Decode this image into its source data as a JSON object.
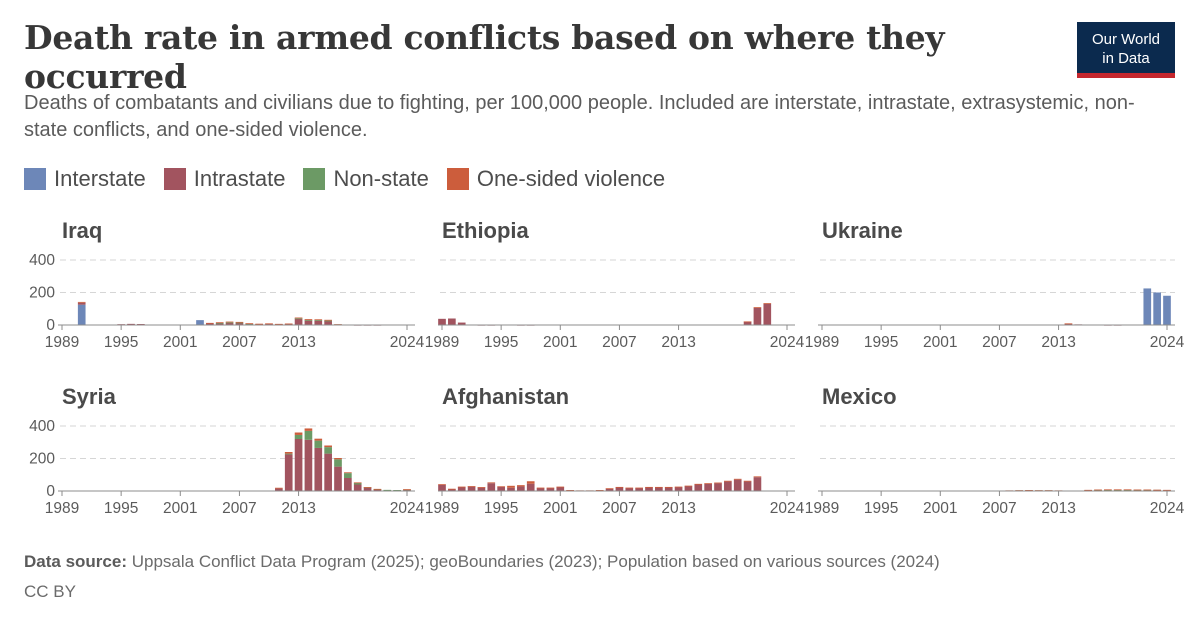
{
  "title": "Death rate in armed conflicts based on where they occurred",
  "subtitle": "Deaths of combatants and civilians due to fighting, per 100,000 people. Included are interstate, intrastate, extrasystemic, non-state conflicts, and one-sided violence.",
  "logo": {
    "line1": "Our World",
    "line2": "in Data",
    "bg": "#0b2a4e",
    "accent": "#c5262d"
  },
  "footer": {
    "source_label": "Data source:",
    "source_text": "Uppsala Conflict Data Program (2025); geoBoundaries (2023); Population based on various sources (2024)",
    "license": "CC BY"
  },
  "chart_data": {
    "type": "bar",
    "stacked": true,
    "layout": "small-multiples",
    "grid": true,
    "legend_position": "top-left",
    "years": [
      1989,
      1990,
      1991,
      1992,
      1993,
      1994,
      1995,
      1996,
      1997,
      1998,
      1999,
      2000,
      2001,
      2002,
      2003,
      2004,
      2005,
      2006,
      2007,
      2008,
      2009,
      2010,
      2011,
      2012,
      2013,
      2014,
      2015,
      2016,
      2017,
      2018,
      2019,
      2020,
      2021,
      2022,
      2023,
      2024
    ],
    "x_ticks": [
      "1989",
      "1995",
      "2001",
      "2007",
      "2013",
      "2024"
    ],
    "x_tick_years": [
      1989,
      1995,
      2001,
      2007,
      2013,
      2024
    ],
    "y_ticks": [
      "0",
      "200",
      "400"
    ],
    "y_tick_values": [
      0,
      200,
      400
    ],
    "ylim": [
      0,
      400
    ],
    "series": [
      {
        "name": "Interstate",
        "color": "#6d87b8"
      },
      {
        "name": "Intrastate",
        "color": "#a2545f"
      },
      {
        "name": "Non-state",
        "color": "#6c9a65"
      },
      {
        "name": "One-sided violence",
        "color": "#cc5d3c"
      }
    ],
    "panels": [
      {
        "name": "Iraq",
        "values": {
          "Interstate": [
            0,
            0,
            125,
            0,
            0,
            0,
            0,
            0,
            0,
            0,
            0,
            0,
            0,
            0,
            30,
            0,
            0,
            0,
            0,
            0,
            0,
            0,
            0,
            0,
            0,
            0,
            0,
            0,
            0,
            0,
            0,
            0,
            0,
            0,
            0,
            0
          ],
          "Intrastate": [
            0,
            0,
            12,
            3,
            2,
            3,
            5,
            7,
            6,
            2,
            2,
            2,
            2,
            2,
            0,
            10,
            12,
            14,
            13,
            8,
            6,
            8,
            6,
            8,
            40,
            28,
            28,
            25,
            3,
            2,
            1,
            1,
            1,
            0,
            0,
            0
          ],
          "Non-state": [
            0,
            0,
            0,
            0,
            0,
            0,
            0,
            0,
            0,
            0,
            0,
            0,
            0,
            0,
            0,
            0,
            1,
            2,
            2,
            1,
            0,
            0,
            0,
            0,
            1,
            2,
            2,
            2,
            1,
            0,
            0,
            0,
            0,
            0,
            0,
            0
          ],
          "One-sided violence": [
            0,
            0,
            5,
            0,
            0,
            0,
            0,
            0,
            0,
            0,
            0,
            0,
            0,
            0,
            0,
            3,
            4,
            5,
            4,
            2,
            2,
            2,
            1,
            1,
            5,
            6,
            5,
            5,
            1,
            0,
            0,
            0,
            0,
            0,
            0,
            0
          ]
        }
      },
      {
        "name": "Ethiopia",
        "values": {
          "Interstate": [
            0,
            0,
            0,
            0,
            0,
            0,
            0,
            0,
            0,
            0,
            3,
            3,
            0,
            0,
            0,
            0,
            0,
            0,
            0,
            0,
            0,
            0,
            0,
            0,
            0,
            0,
            0,
            0,
            0,
            0,
            0,
            0,
            0,
            0,
            0,
            0
          ],
          "Intrastate": [
            38,
            40,
            15,
            2,
            1,
            1,
            0,
            0,
            1,
            1,
            0,
            0,
            0,
            0,
            0,
            0,
            0,
            0,
            0,
            0,
            0,
            0,
            0,
            0,
            0,
            0,
            0,
            0,
            0,
            0,
            0,
            20,
            105,
            130,
            0,
            0
          ],
          "Non-state": [
            0,
            0,
            0,
            0,
            0,
            0,
            0,
            0,
            0,
            0,
            0,
            0,
            0,
            0,
            0,
            0,
            0,
            0,
            0,
            0,
            0,
            0,
            0,
            0,
            0,
            0,
            0,
            0,
            0,
            0,
            0,
            0,
            0,
            0,
            0,
            0
          ],
          "One-sided violence": [
            0,
            0,
            0,
            0,
            0,
            0,
            0,
            0,
            0,
            0,
            0,
            0,
            0,
            0,
            0,
            0,
            0,
            0,
            0,
            0,
            0,
            0,
            0,
            0,
            0,
            0,
            0,
            0,
            0,
            0,
            0,
            2,
            5,
            5,
            0,
            0
          ]
        }
      },
      {
        "name": "Ukraine",
        "values": {
          "Interstate": [
            0,
            0,
            0,
            0,
            0,
            0,
            0,
            0,
            0,
            0,
            0,
            0,
            0,
            0,
            0,
            0,
            0,
            0,
            0,
            0,
            0,
            0,
            0,
            0,
            0,
            0,
            0,
            0,
            0,
            0,
            0,
            0,
            0,
            225,
            200,
            180
          ],
          "Intrastate": [
            0,
            0,
            0,
            0,
            0,
            0,
            0,
            0,
            0,
            0,
            0,
            0,
            0,
            0,
            0,
            0,
            0,
            0,
            0,
            0,
            0,
            0,
            0,
            0,
            0,
            8,
            4,
            2,
            2,
            1,
            1,
            0,
            0,
            0,
            0,
            0
          ],
          "Non-state": [
            0,
            0,
            0,
            0,
            0,
            0,
            0,
            0,
            0,
            0,
            0,
            0,
            0,
            0,
            0,
            0,
            0,
            0,
            0,
            0,
            0,
            0,
            0,
            0,
            0,
            0,
            0,
            0,
            0,
            0,
            0,
            0,
            0,
            0,
            0,
            0
          ],
          "One-sided violence": [
            0,
            0,
            0,
            0,
            0,
            0,
            0,
            0,
            0,
            0,
            0,
            0,
            0,
            0,
            0,
            0,
            0,
            0,
            0,
            0,
            0,
            0,
            0,
            0,
            0,
            2,
            0,
            0,
            0,
            0,
            0,
            0,
            0,
            0,
            0,
            0
          ]
        }
      },
      {
        "name": "Syria",
        "values": {
          "Interstate": [
            0,
            0,
            0,
            0,
            0,
            0,
            0,
            0,
            0,
            0,
            0,
            0,
            0,
            0,
            0,
            0,
            0,
            0,
            0,
            0,
            0,
            0,
            0,
            0,
            0,
            0,
            0,
            0,
            0,
            0,
            0,
            0,
            0,
            0,
            0,
            0
          ],
          "Intrastate": [
            0,
            0,
            0,
            0,
            0,
            0,
            0,
            0,
            0,
            0,
            0,
            0,
            0,
            0,
            0,
            0,
            0,
            0,
            0,
            0,
            0,
            0,
            15,
            225,
            320,
            315,
            265,
            230,
            150,
            80,
            40,
            20,
            10,
            5,
            5,
            8
          ],
          "Non-state": [
            0,
            0,
            0,
            0,
            0,
            0,
            0,
            0,
            0,
            0,
            0,
            0,
            0,
            0,
            0,
            0,
            0,
            0,
            0,
            0,
            0,
            0,
            0,
            5,
            25,
            55,
            45,
            40,
            45,
            30,
            10,
            3,
            2,
            2,
            1,
            2
          ],
          "One-sided violence": [
            0,
            0,
            0,
            0,
            0,
            0,
            0,
            0,
            0,
            0,
            0,
            0,
            0,
            0,
            0,
            0,
            0,
            0,
            0,
            0,
            0,
            0,
            5,
            10,
            15,
            15,
            12,
            10,
            8,
            5,
            3,
            1,
            1,
            0,
            0,
            1
          ]
        }
      },
      {
        "name": "Afghanistan",
        "values": {
          "Interstate": [
            0,
            0,
            0,
            0,
            0,
            0,
            0,
            0,
            0,
            0,
            0,
            0,
            0,
            0,
            0,
            0,
            0,
            0,
            0,
            0,
            0,
            0,
            0,
            0,
            0,
            0,
            0,
            0,
            0,
            0,
            0,
            0,
            0,
            0,
            0,
            0
          ],
          "Intrastate": [
            38,
            12,
            25,
            28,
            22,
            48,
            25,
            20,
            28,
            45,
            18,
            18,
            25,
            5,
            3,
            3,
            5,
            15,
            22,
            18,
            18,
            22,
            22,
            22,
            24,
            30,
            40,
            44,
            48,
            58,
            70,
            58,
            85,
            0,
            0,
            0
          ],
          "Non-state": [
            0,
            0,
            0,
            0,
            0,
            0,
            0,
            0,
            0,
            0,
            0,
            0,
            0,
            0,
            0,
            0,
            0,
            0,
            0,
            0,
            0,
            0,
            0,
            0,
            0,
            0,
            0,
            0,
            0,
            0,
            0,
            0,
            0,
            0,
            0,
            0
          ],
          "One-sided violence": [
            4,
            2,
            2,
            2,
            2,
            5,
            4,
            12,
            8,
            15,
            3,
            3,
            2,
            1,
            1,
            1,
            1,
            2,
            3,
            3,
            3,
            3,
            3,
            3,
            3,
            3,
            4,
            4,
            4,
            5,
            5,
            5,
            5,
            0,
            0,
            0
          ]
        }
      },
      {
        "name": "Mexico",
        "values": {
          "Interstate": [
            0,
            0,
            0,
            0,
            0,
            0,
            0,
            0,
            0,
            0,
            0,
            0,
            0,
            0,
            0,
            0,
            0,
            0,
            0,
            0,
            0,
            0,
            0,
            0,
            0,
            0,
            0,
            0,
            0,
            0,
            0,
            0,
            0,
            0,
            0,
            0
          ],
          "Intrastate": [
            0,
            0,
            0,
            0,
            0,
            0,
            0,
            0,
            0,
            0,
            0,
            0,
            0,
            0,
            0,
            0,
            0,
            0,
            0,
            0,
            0,
            0,
            0,
            0,
            0,
            0,
            0,
            0,
            0,
            0,
            0,
            0,
            0,
            0,
            0,
            0
          ],
          "Non-state": [
            0,
            0,
            0,
            0,
            0,
            0,
            0,
            0,
            0,
            0,
            0,
            0,
            0,
            0,
            0,
            0,
            0,
            0,
            2,
            3,
            4,
            5,
            4,
            4,
            3,
            2,
            2,
            6,
            8,
            9,
            9,
            9,
            8,
            8,
            7,
            6
          ],
          "One-sided violence": [
            0,
            0,
            0,
            0,
            0,
            0,
            0,
            0,
            0,
            0,
            0,
            0,
            0,
            0,
            0,
            0,
            0,
            0,
            1,
            1,
            1,
            1,
            1,
            1,
            1,
            0,
            0,
            1,
            1,
            1,
            1,
            1,
            1,
            1,
            1,
            1
          ]
        }
      }
    ]
  }
}
